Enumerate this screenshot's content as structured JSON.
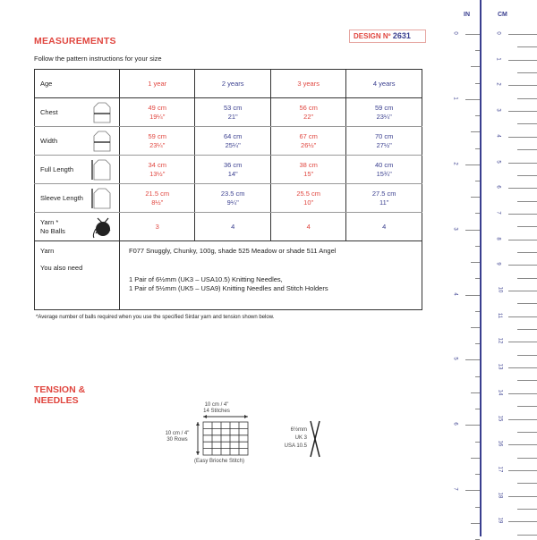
{
  "title": "MEASUREMENTS",
  "design": {
    "label": "DESIGN Nº",
    "number": "2631"
  },
  "subtitle": "Follow the pattern instructions for your size",
  "table": {
    "header": {
      "label": "Age",
      "sizes": [
        "1 year",
        "2 years",
        "3 years",
        "4 years"
      ]
    },
    "rows": [
      {
        "label": "Chest",
        "cm": [
          "49 cm",
          "53 cm",
          "56 cm",
          "59 cm"
        ],
        "in": [
          "19¼\"",
          "21\"",
          "22\"",
          "23¼\""
        ]
      },
      {
        "label": "Width",
        "cm": [
          "59 cm",
          "64 cm",
          "67 cm",
          "70 cm"
        ],
        "in": [
          "23¼\"",
          "25¼\"",
          "26½\"",
          "27½\""
        ]
      },
      {
        "label": "Full Length",
        "cm": [
          "34 cm",
          "36 cm",
          "38 cm",
          "40 cm"
        ],
        "in": [
          "13½\"",
          "14\"",
          "15\"",
          "15¾\""
        ]
      },
      {
        "label": "Sleeve Length",
        "cm": [
          "21.5 cm",
          "23.5 cm",
          "25.5 cm",
          "27.5 cm"
        ],
        "in": [
          "8½\"",
          "9¼\"",
          "10\"",
          "11\""
        ]
      }
    ],
    "yarn_balls": {
      "label1": "Yarn *",
      "label2": "No Balls",
      "values": [
        "3",
        "4",
        "4",
        "4"
      ]
    },
    "yarn": {
      "label": "Yarn",
      "value": "F077 Snuggly, Chunky, 100g, shade 525 Meadow or shade 511 Angel"
    },
    "also": {
      "label": "You also need",
      "lines": [
        "1 Pair of 6½mm (UK3 – USA10.5) Knitting Needles,",
        "1 Pair of 5½mm (UK5 – USA9) Knitting Needles and Stitch Holders"
      ]
    }
  },
  "note": "*Average number of balls required when you use the specified Sirdar yarn and tension shown below.",
  "tension": {
    "title1": "TENSION &",
    "title2": "NEEDLES",
    "width": "10 cm / 4\"",
    "stitches": "14 Stitches",
    "height": "10 cm / 4\"",
    "rows": "30 Rows",
    "stitch": "(Easy Brioche Stitch)",
    "needle_mm": "6½mm",
    "needle_uk": "UK 3",
    "needle_usa": "USA 10.5"
  },
  "ruler": {
    "in_label": "IN",
    "cm_label": "CM",
    "in": [
      "0",
      "1",
      "2",
      "3",
      "4",
      "5",
      "6",
      "7"
    ],
    "cm": [
      "0",
      "1",
      "2",
      "3",
      "4",
      "5",
      "6",
      "7",
      "8",
      "9",
      "10",
      "11",
      "12",
      "13",
      "14",
      "15",
      "16",
      "17",
      "18",
      "19"
    ]
  },
  "colors": {
    "accent": "#e0463f",
    "blue": "#3a3f8f"
  }
}
